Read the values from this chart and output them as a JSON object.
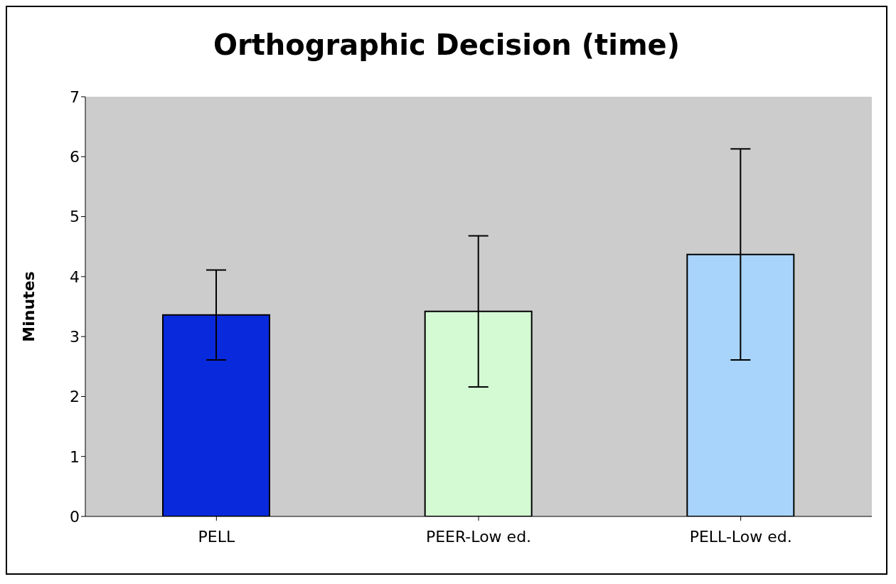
{
  "chart_data": {
    "type": "bar",
    "title": "Orthographic Decision (time)",
    "ylabel": "Minutes",
    "categories": [
      "PELL",
      "PEER-Low ed.",
      "PELL-Low ed."
    ],
    "values": [
      3.36,
      3.42,
      4.37
    ],
    "errors": [
      0.75,
      1.26,
      1.76
    ],
    "colors": [
      "#0829dc",
      "#d4fad4",
      "#a8d4fc"
    ],
    "ylim": [
      0,
      7
    ],
    "yticks": [
      0,
      1,
      2,
      3,
      4,
      5,
      6,
      7
    ],
    "legend": false
  }
}
